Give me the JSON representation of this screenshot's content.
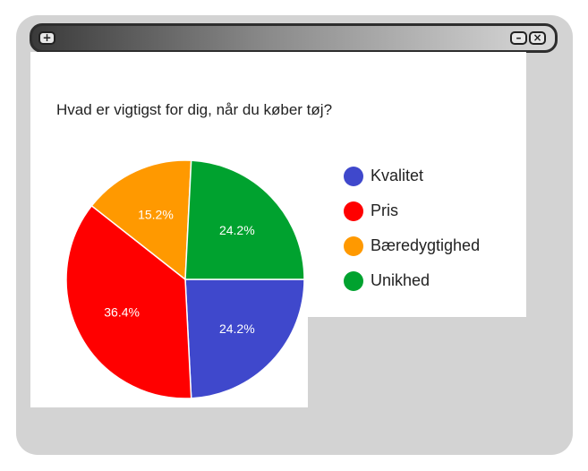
{
  "chart_data": {
    "type": "pie",
    "title": "Hvad er vigtigst for dig, når du køber tøj?",
    "categories": [
      "Kvalitet",
      "Pris",
      "Bæredygtighed",
      "Unikhed"
    ],
    "values": [
      24.2,
      36.4,
      15.2,
      24.2
    ],
    "labels": [
      "24.2%",
      "36.4%",
      "15.2%",
      "24.2%"
    ],
    "colors": [
      "#3f48cc",
      "#ff0000",
      "#ff9900",
      "#00a22f"
    ],
    "legend_position": "right"
  },
  "window": {
    "plus_icon": "plus-icon",
    "minimize_icon": "minimize-icon",
    "close_icon": "close-icon"
  }
}
